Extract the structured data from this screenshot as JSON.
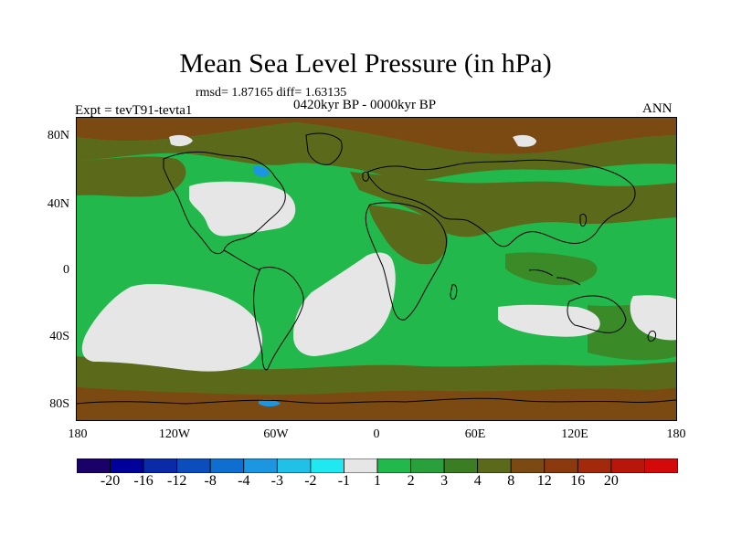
{
  "title": "Mean Sea Level Pressure (in hPa)",
  "stats": "rmsd= 1.87165  diff= 1.63135",
  "period": "0420kyr BP - 0000kyr BP",
  "experiment": "Expt = tevT91-tevta1",
  "season": "ANN",
  "axes": {
    "y_ticks": [
      "80N",
      "40N",
      "0",
      "40S",
      "80S"
    ],
    "x_ticks": [
      "180",
      "120W",
      "60W",
      "0",
      "60E",
      "120E",
      "180"
    ]
  },
  "colorbar": {
    "colors": [
      "#1a0069",
      "#00009a",
      "#0a2aa8",
      "#0b4dbd",
      "#0e6fd0",
      "#1c96e0",
      "#21c0e8",
      "#20e8f0",
      "#e6e6e6",
      "#22b84c",
      "#2aa03c",
      "#3a7d22",
      "#5a6a1a",
      "#7a4a12",
      "#8a3a0e",
      "#a22a0a",
      "#b8160a",
      "#d40a0a"
    ],
    "labels": [
      "-20",
      "-16",
      "-12",
      "-8",
      "-4",
      "-3",
      "-2",
      "-1",
      "1",
      "2",
      "3",
      "4",
      "8",
      "12",
      "16",
      "20"
    ]
  },
  "map_colors": {
    "ocean_green": "#22b84c",
    "mid_green": "#3a8a28",
    "olive": "#5a6a1a",
    "brown": "#7a4a12",
    "neutral": "#e6e6e6",
    "light_blue": "#1c96e0",
    "coast": "#000000"
  }
}
